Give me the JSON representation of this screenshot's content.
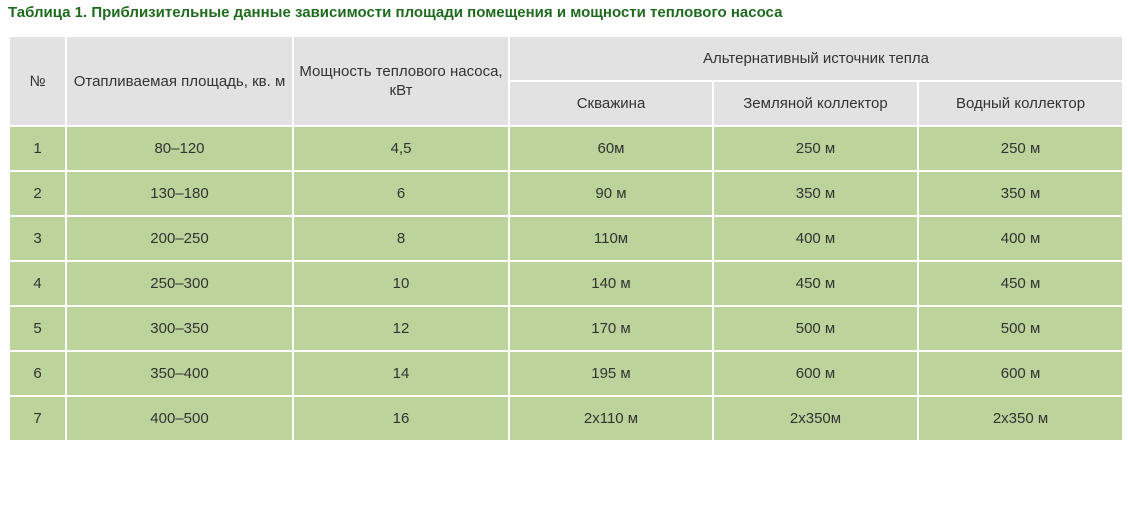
{
  "caption": "Таблица 1. Приблизительные данные зависимости площади помещения и мощности теплового насоса",
  "headers": {
    "num": "№",
    "area": "Отапливаемая площадь, кв. м",
    "power": "Мощность теплового насоса, кВт",
    "alt_source": "Альтернативный источник тепла",
    "well": "Скважина",
    "ground": "Земляной коллектор",
    "water": "Водный коллектор"
  },
  "rows": [
    {
      "num": "1",
      "area": "80–120",
      "power": "4,5",
      "well": "60м",
      "ground": "250 м",
      "water": "250 м"
    },
    {
      "num": "2",
      "area": "130–180",
      "power": "6",
      "well": "90 м",
      "ground": "350 м",
      "water": "350 м"
    },
    {
      "num": "3",
      "area": "200–250",
      "power": "8",
      "well": "110м",
      "ground": "400 м",
      "water": "400 м"
    },
    {
      "num": "4",
      "area": "250–300",
      "power": "10",
      "well": "140 м",
      "ground": "450 м",
      "water": "450 м"
    },
    {
      "num": "5",
      "area": "300–350",
      "power": "12",
      "well": "170 м",
      "ground": "500 м",
      "water": "500 м"
    },
    {
      "num": "6",
      "area": "350–400",
      "power": "14",
      "well": "195 м",
      "ground": "600 м",
      "water": "600 м"
    },
    {
      "num": "7",
      "area": "400–500",
      "power": "16",
      "well": "2х110 м",
      "ground": "2х350м",
      "water": "2х350 м"
    }
  ]
}
